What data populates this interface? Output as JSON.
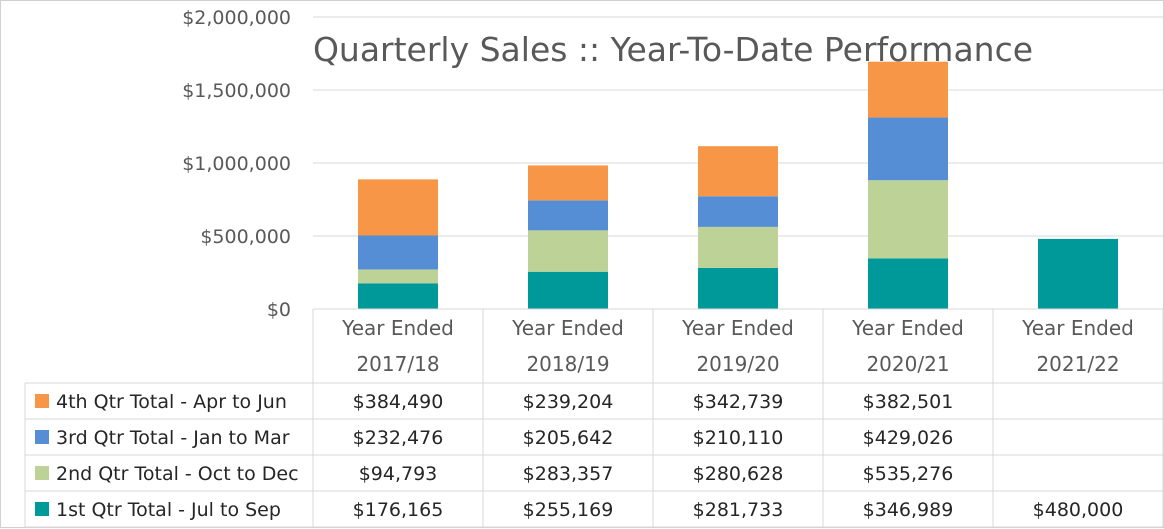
{
  "chart_data": {
    "type": "bar",
    "stacked": true,
    "title": "Quarterly Sales ::  Year-To-Date Performance",
    "categories": [
      [
        "Year Ended",
        "2017/18"
      ],
      [
        "Year Ended",
        "2018/19"
      ],
      [
        "Year Ended",
        "2019/20"
      ],
      [
        "Year Ended",
        "2020/21"
      ],
      [
        "Year Ended",
        "2021/22"
      ]
    ],
    "y_ticks": [
      "$0",
      "$500,000",
      "$1,000,000",
      "$1,500,000",
      "$2,000,000"
    ],
    "ylim": [
      0,
      2000000
    ],
    "grid": true,
    "legend_placement": "data table below chart",
    "series": [
      {
        "name": "1st Qtr Total - Jul to Sep",
        "color": "#009999",
        "values": [
          176165,
          255169,
          281733,
          346989,
          480000
        ],
        "labels": [
          "$176,165",
          "$255,169",
          "$281,733",
          "$346,989",
          "$480,000"
        ]
      },
      {
        "name": "2nd Qtr Total - Oct to Dec",
        "color": "#bdd297",
        "values": [
          94793,
          283357,
          280628,
          535276,
          null
        ],
        "labels": [
          "$94,793",
          "$283,357",
          "$280,628",
          "$535,276",
          ""
        ]
      },
      {
        "name": "3rd Qtr Total - Jan to Mar",
        "color": "#558ed5",
        "values": [
          232476,
          205642,
          210110,
          429026,
          null
        ],
        "labels": [
          "$232,476",
          "$205,642",
          "$210,110",
          "$429,026",
          ""
        ]
      },
      {
        "name": "4th Qtr Total - Apr to Jun",
        "color": "#f79646",
        "values": [
          384490,
          239204,
          342739,
          382501,
          null
        ],
        "labels": [
          "$384,490",
          "$239,204",
          "$342,739",
          "$382,501",
          ""
        ]
      }
    ],
    "table_row_order": [
      3,
      2,
      1,
      0
    ]
  }
}
